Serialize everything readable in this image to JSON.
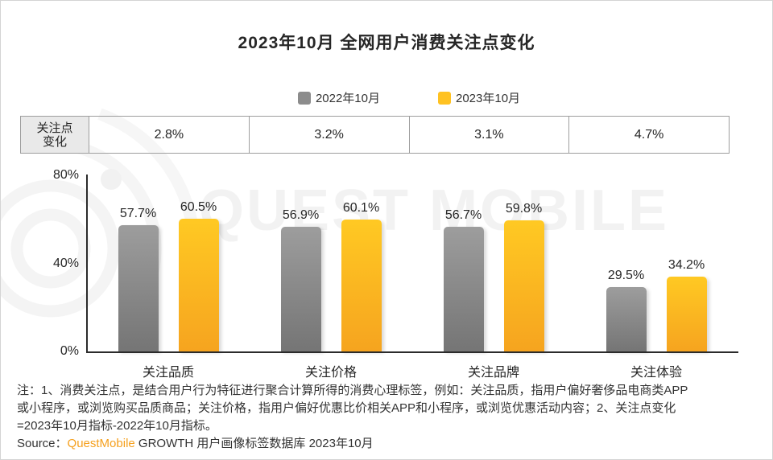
{
  "page": {
    "title": "2023年10月 全网用户消费关注点变化"
  },
  "legend": {
    "items": [
      {
        "label": "2022年10月",
        "color": "#8c8c8c"
      },
      {
        "label": "2023年10月",
        "color": "#ffc222"
      }
    ]
  },
  "change_table": {
    "header_line1": "关注点",
    "header_line2": "变化"
  },
  "watermark": {
    "text": "QUEST MOBILE"
  },
  "chart_data": {
    "type": "bar",
    "title": "2023年10月 全网用户消费关注点变化",
    "categories": [
      "关注品质",
      "关注价格",
      "关注品牌",
      "关注体验"
    ],
    "series": [
      {
        "name": "2022年10月",
        "values": [
          57.7,
          56.9,
          56.7,
          29.5
        ],
        "color_top": "#9d9d9d",
        "color_bottom": "#757575"
      },
      {
        "name": "2023年10月",
        "values": [
          60.5,
          60.1,
          59.8,
          34.2
        ],
        "color_top": "#ffc923",
        "color_bottom": "#f6a41f"
      }
    ],
    "value_suffix": "%",
    "ylim": [
      0,
      80
    ],
    "yticks": [
      "0%",
      "40%",
      "80%"
    ],
    "grid": false,
    "legend_position": "top",
    "change_row_label": "关注点变化",
    "change_values": [
      "2.8%",
      "3.2%",
      "3.1%",
      "4.7%"
    ]
  },
  "notes": {
    "line1": "注：1、消费关注点，是结合用户行为特征进行聚合计算所得的消费心理标签，例如：关注品质，指用户偏好奢侈品电商类APP",
    "line2": "或小程序，或浏览购买品质商品；关注价格，指用户偏好优惠比价相关APP和小程序，或浏览优惠活动内容；2、关注点变化",
    "line3": "=2023年10月指标-2022年10月指标。",
    "source_label": "Source：",
    "source_brand": "QuestMobile",
    "source_rest": " GROWTH 用户画像标签数据库 2023年10月"
  }
}
